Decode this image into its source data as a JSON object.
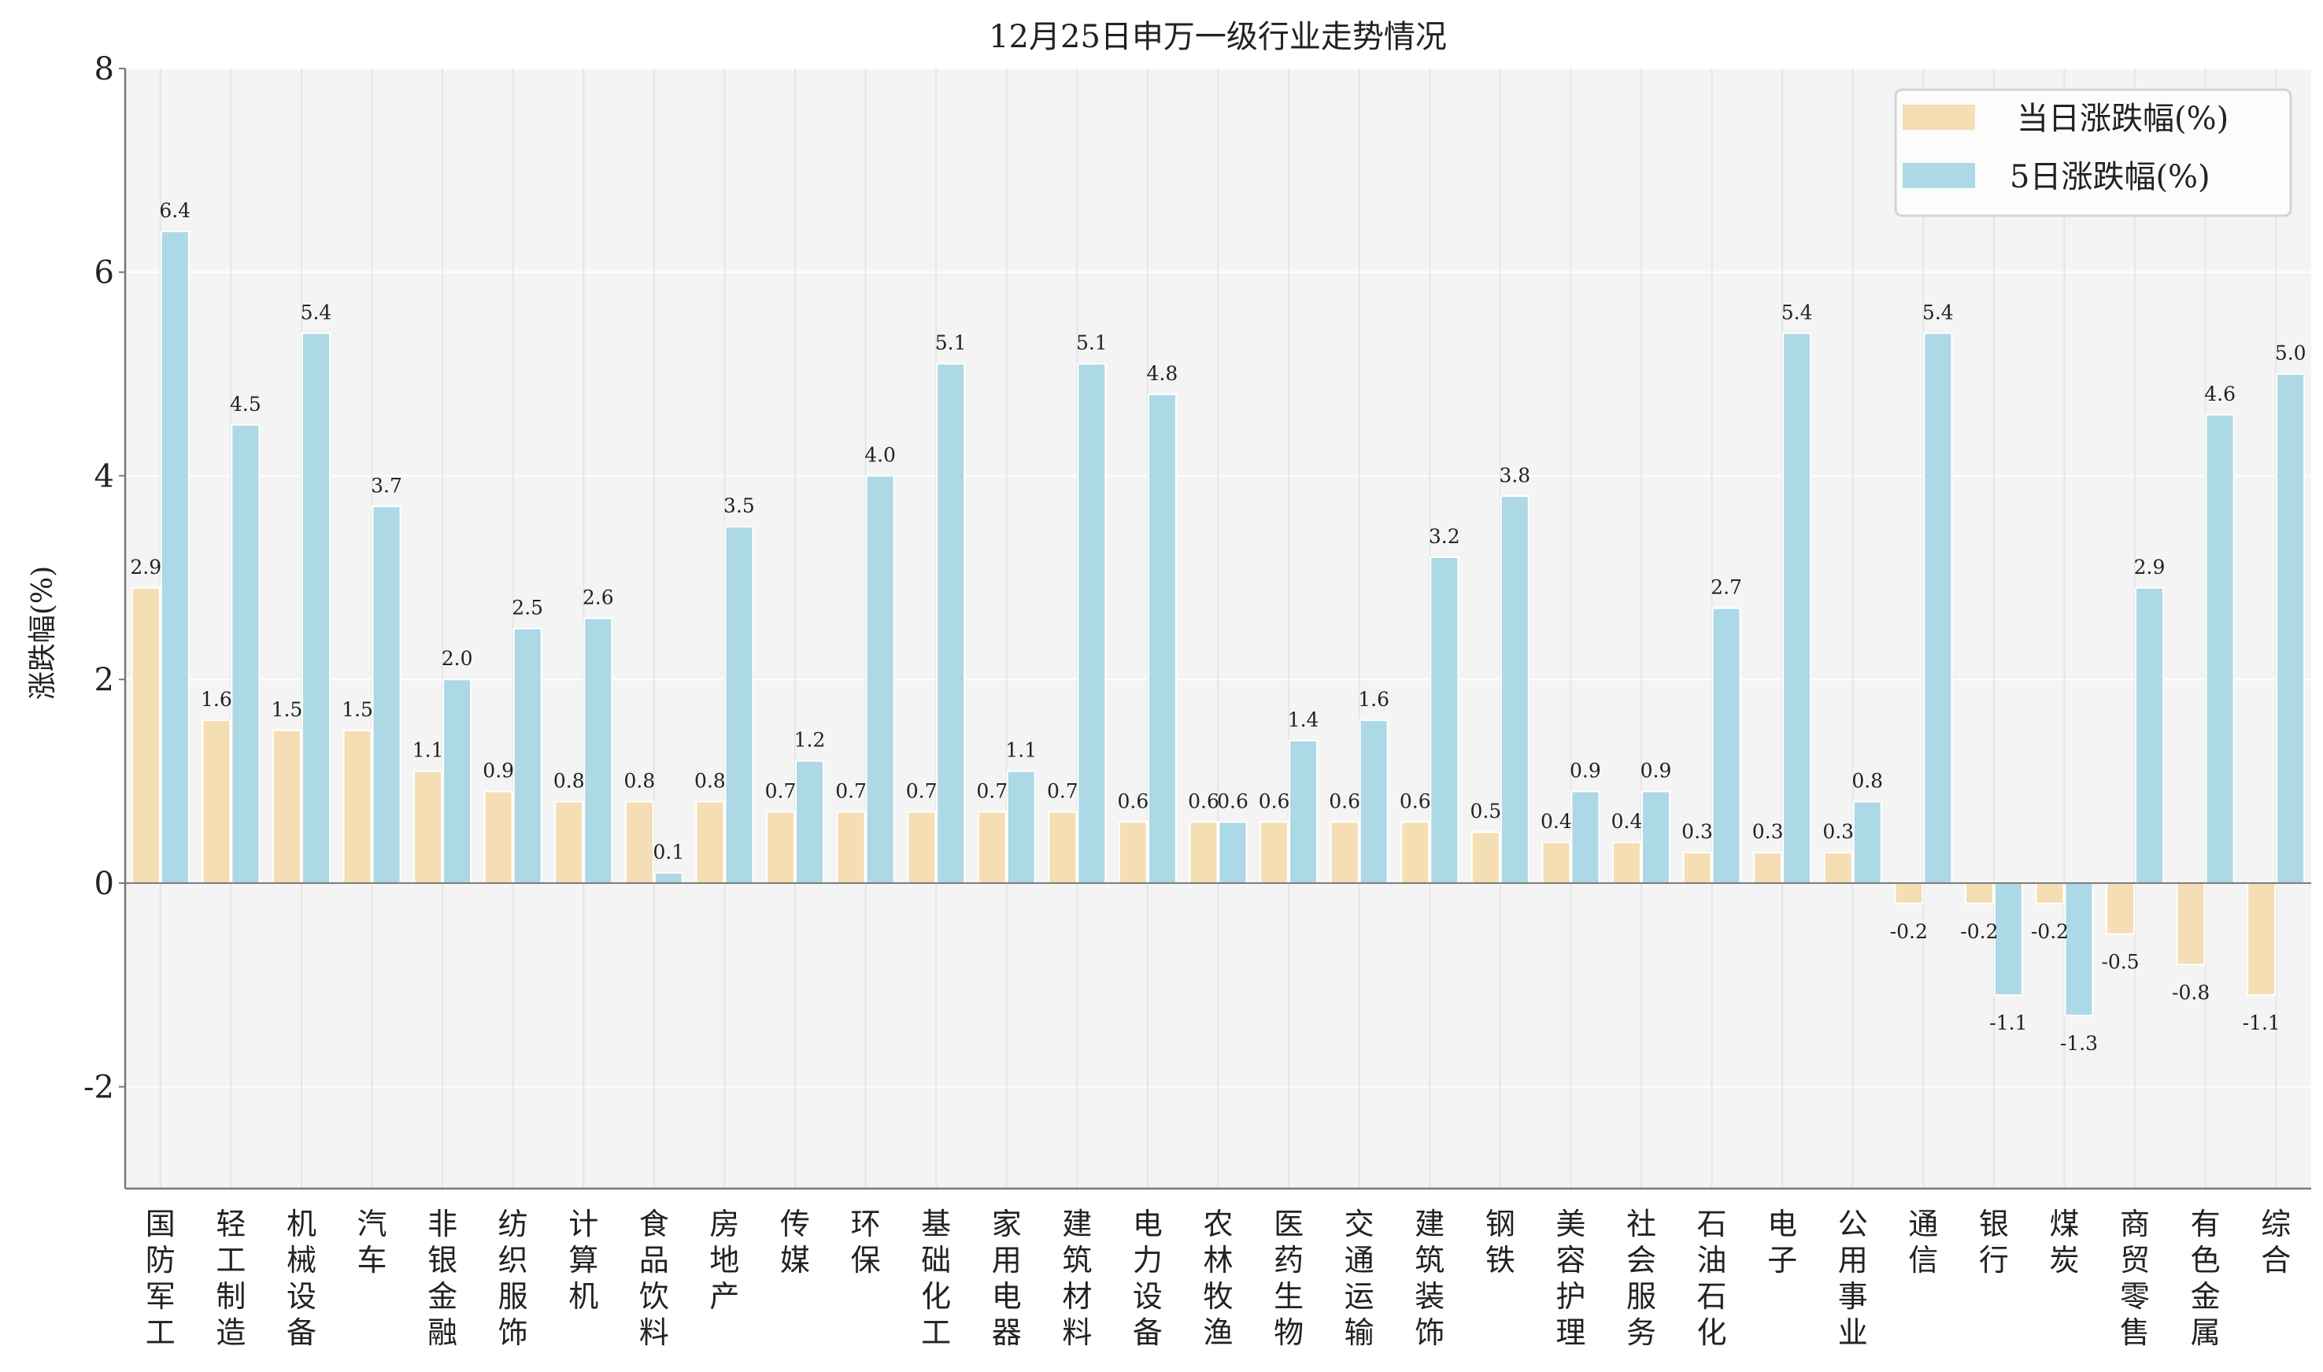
{
  "chart_data": {
    "type": "bar",
    "title": "12月25日申万一级行业走势情况",
    "xlabel": "",
    "ylabel": "涨跌幅(%)",
    "ylim": [
      -3,
      8
    ],
    "yticks": [
      -2,
      0,
      2,
      4,
      6,
      8
    ],
    "grid": true,
    "legend_position": "top-right",
    "categories": [
      "国防军工",
      "轻工制造",
      "机械设备",
      "汽车",
      "非银金融",
      "纺织服饰",
      "计算机",
      "食品饮料",
      "房地产",
      "传媒",
      "环保",
      "基础化工",
      "家用电器",
      "建筑材料",
      "电力设备",
      "农林牧渔",
      "医药生物",
      "交通运输",
      "建筑装饰",
      "钢铁",
      "美容护理",
      "社会服务",
      "石油石化",
      "电子",
      "公用事业",
      "通信",
      "银行",
      "煤炭",
      "商贸零售",
      "有色金属",
      "综合"
    ],
    "series": [
      {
        "name": "当日涨跌幅(%)",
        "color": "#F5DEB3",
        "values": [
          2.9,
          1.6,
          1.5,
          1.5,
          1.1,
          0.9,
          0.8,
          0.8,
          0.8,
          0.7,
          0.7,
          0.7,
          0.7,
          0.7,
          0.6,
          0.6,
          0.6,
          0.6,
          0.6,
          0.5,
          0.4,
          0.4,
          0.3,
          0.3,
          0.3,
          -0.2,
          -0.2,
          -0.2,
          -0.5,
          -0.8,
          -1.1
        ]
      },
      {
        "name": "5日涨跌幅(%)",
        "color": "#ADD8E6",
        "values": [
          6.4,
          4.5,
          5.4,
          3.7,
          2.0,
          2.5,
          2.6,
          0.1,
          3.5,
          1.2,
          4.0,
          5.1,
          1.1,
          5.1,
          4.8,
          0.6,
          1.4,
          1.6,
          3.2,
          3.8,
          0.9,
          0.9,
          2.7,
          5.4,
          0.8,
          5.4,
          -1.1,
          -1.3,
          2.9,
          4.6,
          5.0
        ]
      }
    ]
  }
}
